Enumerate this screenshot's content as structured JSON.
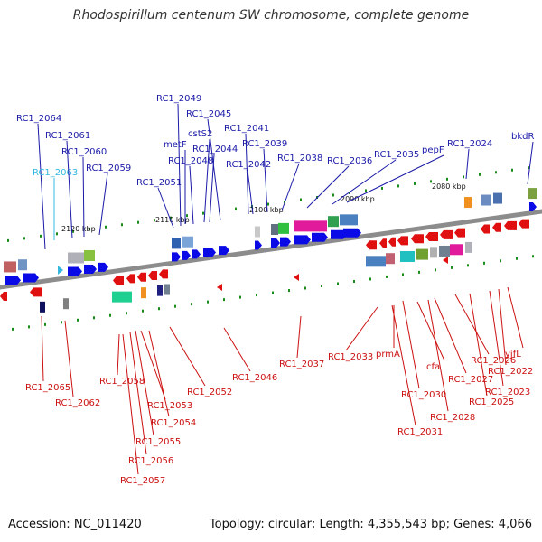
{
  "title": "Rhodospirillum centenum SW chromosome, complete genome",
  "footer": {
    "accession": "Accession: NC_011420",
    "summary": "Topology: circular; Length: 4,355,543 bp; Genes: 4,066"
  },
  "scale_labels": [
    "2120 kbp",
    "2110 kbp",
    "2100 kbp",
    "2090 kbp",
    "2080 kbp"
  ],
  "forward_genes": [
    "RC1_2064",
    "RC1_2063",
    "RC1_2061",
    "RC1_2060",
    "RC1_2059",
    "RC1_2051",
    "RC1_2049",
    "metF",
    "RC1_2048",
    "cstS2",
    "RC1_2045",
    "RC1_2044",
    "RC1_2041",
    "RC1_2042",
    "RC1_2039",
    "RC1_2038",
    "RC1_2036",
    "RC1_2035",
    "pepF",
    "RC1_2024",
    "bkdR"
  ],
  "highlighted_gene": "RC1_2063",
  "reverse_genes": [
    "RC1_2065",
    "RC1_2062",
    "RC1_2058",
    "RC1_2053",
    "RC1_2054",
    "RC1_2055",
    "RC1_2056",
    "RC1_2057",
    "RC1_2052",
    "RC1_2046",
    "RC1_2037",
    "RC1_2033",
    "prmA",
    "RC1_2030",
    "RC1_2031",
    "cfa",
    "RC1_2028",
    "RC1_2027",
    "RC1_2026",
    "RC1_2025",
    "RC1_2023",
    "RC1_2022",
    "yjfL"
  ],
  "colors": {
    "forward": "#0a0ae6",
    "reverse": "#e01010",
    "backbone": "#8c8c8c",
    "forward_label": "#1a1aa8",
    "reverse_label": "#cc1010",
    "highlight_label": "#34b8e0",
    "tick": "#1a8c1a"
  }
}
